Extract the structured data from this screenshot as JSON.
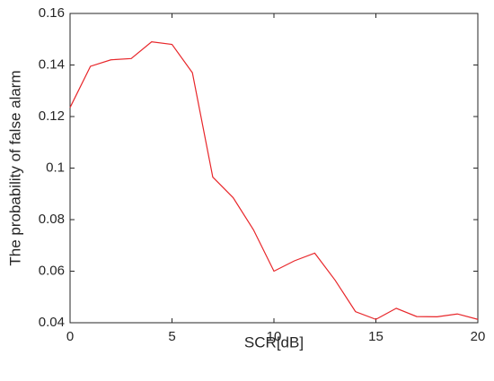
{
  "chart_data": {
    "type": "line",
    "x_label": "SCR[dB]",
    "y_label": "The probability of false alarm",
    "x": [
      0,
      1,
      2,
      3,
      4,
      5,
      6,
      7,
      8,
      9,
      10,
      11,
      12,
      13,
      14,
      15,
      16,
      17,
      18,
      19,
      20
    ],
    "series": [
      {
        "color": "#e8262a",
        "values": [
          0.1235,
          0.1395,
          0.142,
          0.1425,
          0.149,
          0.148,
          0.137,
          0.0965,
          0.0885,
          0.076,
          0.06,
          0.064,
          0.067,
          0.0565,
          0.0443,
          0.0413,
          0.0456,
          0.0424,
          0.0423,
          0.0434,
          0.0413
        ]
      }
    ],
    "xlim": [
      0,
      20
    ],
    "xticks": [
      0,
      5,
      10,
      15,
      20
    ],
    "ylim": [
      0.04,
      0.16
    ],
    "yticks": [
      0.04,
      0.06,
      0.08,
      0.1,
      0.12,
      0.14,
      0.16
    ]
  }
}
